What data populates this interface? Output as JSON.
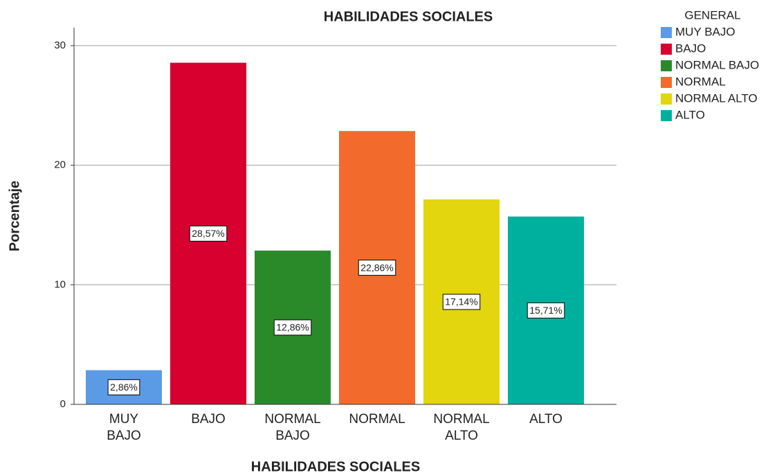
{
  "chart_data": {
    "type": "bar",
    "title": "HABILIDADES SOCIALES",
    "x_label": "HABILIDADES SOCIALES",
    "y_label": "Porcentaje",
    "categories": [
      "MUY BAJO",
      "BAJO",
      "NORMAL BAJO",
      "NORMAL",
      "NORMAL ALTO",
      "ALTO"
    ],
    "values": [
      2.86,
      28.57,
      12.86,
      22.86,
      17.14,
      15.71
    ],
    "value_labels": [
      "2,86%",
      "28,57%",
      "12,86%",
      "22,86%",
      "17,14%",
      "15,71%"
    ],
    "colors": [
      "#5b9be6",
      "#d7002f",
      "#2a8a2a",
      "#f26b2c",
      "#e3d50e",
      "#00b09e"
    ],
    "ylim": [
      0,
      31.5
    ],
    "yticks": [
      0,
      10,
      20,
      30
    ],
    "grid": true,
    "legend": {
      "title": "GENERAL",
      "position": "upper right"
    }
  }
}
